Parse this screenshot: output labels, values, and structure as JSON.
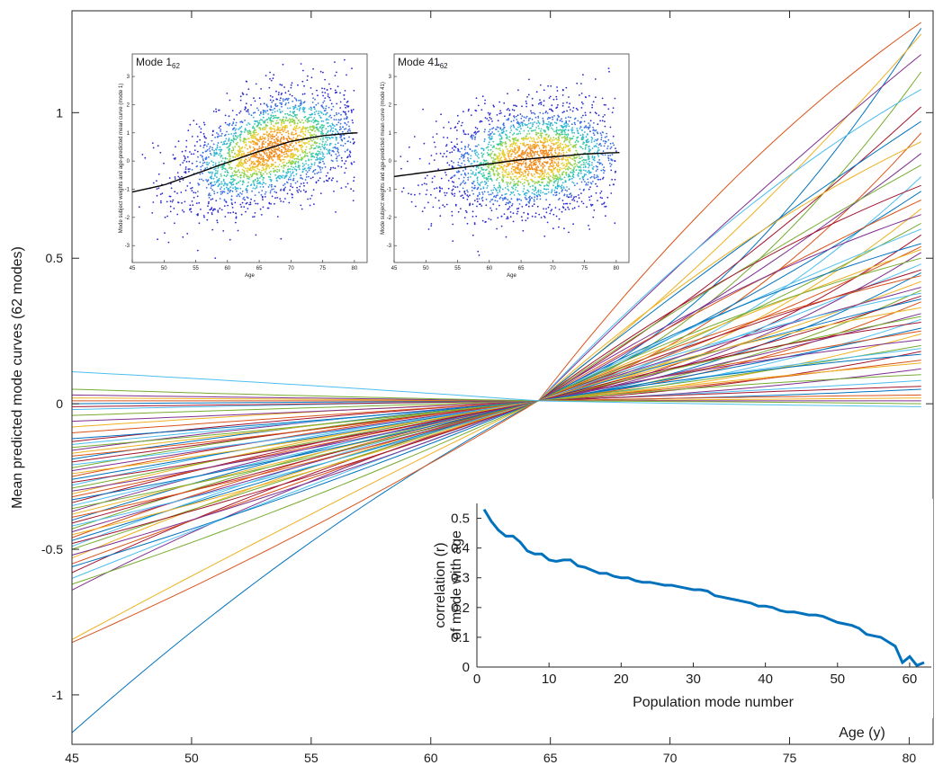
{
  "chart_data": [
    {
      "id": "main",
      "type": "line",
      "ylabel": "Mean predicted mode curves (62 modes)",
      "xlabel": "Age (y)",
      "xlim": [
        45,
        81
      ],
      "ylim": [
        -1.17,
        1.35
      ],
      "xticks": [
        45,
        50,
        55,
        60,
        65,
        70,
        75,
        80
      ],
      "yticks": [
        -1,
        -0.5,
        0,
        0.5,
        1
      ],
      "ytick_labels": [
        "-1",
        "-0.5",
        "0",
        "0.5",
        "1"
      ],
      "grid": false,
      "n_series": 62,
      "crossing_point": {
        "x": 64.5,
        "y": 0.01
      },
      "series_start_values": [
        -1.13,
        -0.82,
        -0.81,
        -0.64,
        -0.62,
        -0.6,
        -0.58,
        -0.56,
        -0.55,
        -0.53,
        -0.52,
        -0.5,
        -0.49,
        -0.48,
        -0.47,
        -0.46,
        -0.45,
        -0.44,
        -0.43,
        -0.42,
        -0.41,
        -0.4,
        -0.39,
        -0.38,
        -0.37,
        -0.36,
        -0.35,
        -0.34,
        -0.33,
        -0.32,
        -0.31,
        -0.3,
        -0.29,
        -0.28,
        -0.27,
        -0.26,
        -0.25,
        -0.24,
        -0.23,
        -0.22,
        -0.21,
        -0.2,
        -0.19,
        -0.18,
        -0.17,
        -0.16,
        -0.15,
        -0.14,
        -0.13,
        -0.12,
        -0.1,
        -0.08,
        -0.06,
        -0.04,
        -0.02,
        -0.01,
        0.0,
        0.01,
        0.02,
        0.03,
        0.05,
        0.11
      ],
      "series_end_values": [
        1.29,
        1.31,
        1.27,
        1.2,
        1.14,
        1.08,
        1.02,
        0.97,
        0.93,
        0.9,
        0.86,
        0.82,
        0.78,
        0.75,
        0.73,
        0.7,
        0.67,
        0.65,
        0.62,
        0.6,
        0.58,
        0.55,
        0.54,
        0.53,
        0.52,
        0.5,
        0.48,
        0.46,
        0.45,
        0.44,
        0.42,
        0.4,
        0.39,
        0.38,
        0.37,
        0.36,
        0.35,
        0.33,
        0.31,
        0.3,
        0.29,
        0.28,
        0.26,
        0.25,
        0.24,
        0.22,
        0.2,
        0.19,
        0.18,
        0.17,
        0.15,
        0.14,
        0.12,
        0.1,
        0.08,
        0.06,
        0.05,
        0.03,
        0.02,
        0.01,
        0.0,
        -0.01
      ],
      "colors": [
        "#0072BD",
        "#D95319",
        "#EDB120",
        "#7E2F8E",
        "#77AC30",
        "#4DBEEE",
        "#A2142F"
      ]
    },
    {
      "id": "inset-correlation",
      "type": "line",
      "ylabel": [
        "correlation (r)",
        "of mode with age"
      ],
      "xlabel": "Population mode number",
      "xlim": [
        0,
        63
      ],
      "ylim": [
        0,
        0.55
      ],
      "xticks": [
        0,
        10,
        20,
        30,
        40,
        50,
        60
      ],
      "yticks": [
        0,
        0.1,
        0.2,
        0.3,
        0.4,
        0.5
      ],
      "ytick_labels": [
        "0",
        "0.1",
        "0.2",
        "0.3",
        "0.4",
        "0.5"
      ],
      "color": "#0072BD",
      "x": [
        1,
        2,
        3,
        4,
        5,
        6,
        7,
        8,
        9,
        10,
        11,
        12,
        13,
        14,
        15,
        16,
        17,
        18,
        19,
        20,
        21,
        22,
        23,
        24,
        25,
        26,
        27,
        28,
        29,
        30,
        31,
        32,
        33,
        34,
        35,
        36,
        37,
        38,
        39,
        40,
        41,
        42,
        43,
        44,
        45,
        46,
        47,
        48,
        49,
        50,
        51,
        52,
        53,
        54,
        55,
        56,
        57,
        58,
        59,
        60,
        61,
        62
      ],
      "values": [
        0.53,
        0.49,
        0.46,
        0.44,
        0.44,
        0.42,
        0.39,
        0.38,
        0.38,
        0.36,
        0.355,
        0.36,
        0.36,
        0.34,
        0.335,
        0.325,
        0.315,
        0.315,
        0.305,
        0.3,
        0.3,
        0.29,
        0.285,
        0.285,
        0.28,
        0.275,
        0.275,
        0.27,
        0.265,
        0.26,
        0.26,
        0.255,
        0.24,
        0.235,
        0.23,
        0.225,
        0.22,
        0.215,
        0.205,
        0.205,
        0.2,
        0.19,
        0.185,
        0.185,
        0.18,
        0.175,
        0.175,
        0.17,
        0.16,
        0.15,
        0.145,
        0.14,
        0.13,
        0.11,
        0.105,
        0.1,
        0.085,
        0.07,
        0.015,
        0.035,
        0.005,
        0.015
      ]
    },
    {
      "id": "scatter-mode-1",
      "type": "scatter",
      "title": "Mode 1",
      "title_subscript": "62",
      "xlabel": "Age",
      "ylabel": "Mode subject weights and age-predicted mean curve (mode 1)",
      "xlim": [
        45,
        82
      ],
      "ylim": [
        -3.6,
        3.8
      ],
      "xticks": [
        45,
        50,
        55,
        60,
        65,
        70,
        75,
        80
      ],
      "yticks": [
        -3,
        -2,
        -1,
        0,
        1,
        2,
        3
      ],
      "fit_curve": {
        "x": [
          45,
          50,
          55,
          60,
          65,
          70,
          75,
          80
        ],
        "y": [
          -1.1,
          -0.85,
          -0.45,
          -0.05,
          0.35,
          0.7,
          0.9,
          1.0
        ]
      },
      "density_center": {
        "x": 67,
        "y": 0.6
      }
    },
    {
      "id": "scatter-mode-41",
      "type": "scatter",
      "title": "Mode 41",
      "title_subscript": "62",
      "xlabel": "Age",
      "ylabel": "Mode subject weights and age-predicted mean curve (mode 41)",
      "xlim": [
        45,
        82
      ],
      "ylim": [
        -3.6,
        3.8
      ],
      "xticks": [
        45,
        50,
        55,
        60,
        65,
        70,
        75,
        80
      ],
      "yticks": [
        -3,
        -2,
        -1,
        0,
        1,
        2,
        3
      ],
      "fit_curve": {
        "x": [
          45,
          50,
          55,
          60,
          65,
          70,
          75,
          80
        ],
        "y": [
          -0.55,
          -0.4,
          -0.25,
          -0.1,
          0.05,
          0.15,
          0.25,
          0.3
        ]
      },
      "density_center": {
        "x": 67,
        "y": 0.1
      }
    }
  ]
}
